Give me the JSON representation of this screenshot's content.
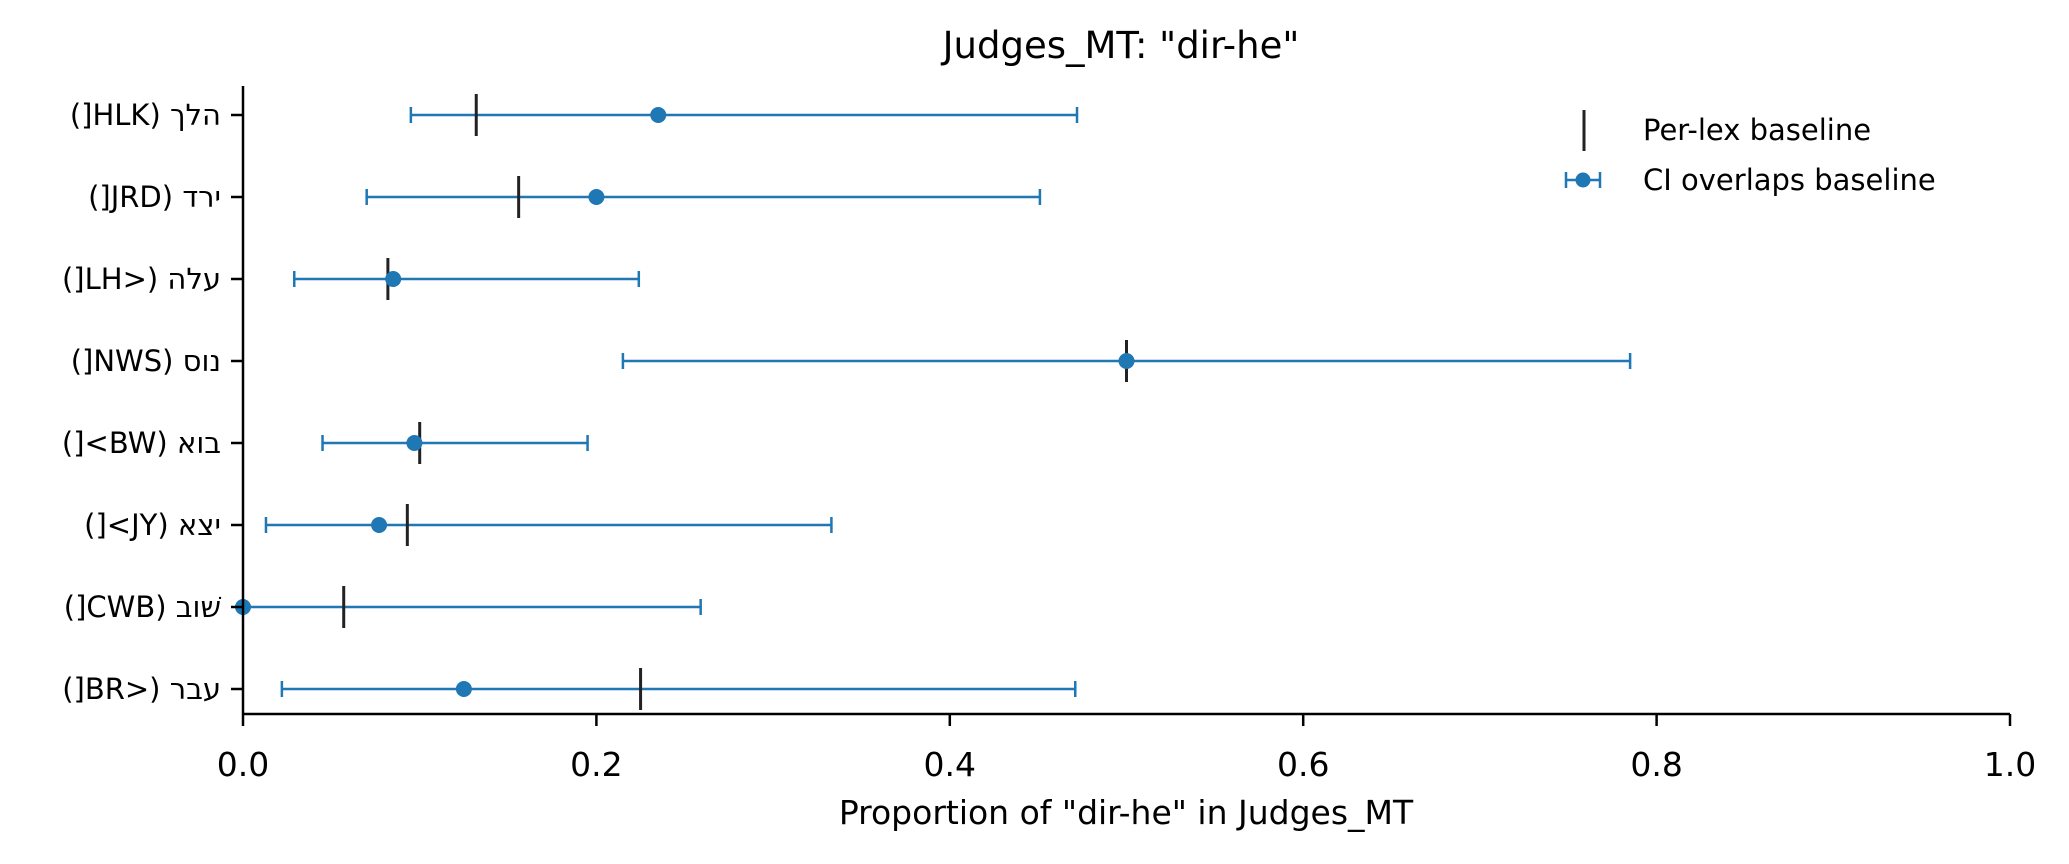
{
  "chart_data": {
    "type": "errorbar",
    "title": "Judges_MT: \"dir-he\"",
    "xlabel": "Proportion of \"dir-he\" in Judges_MT",
    "ylabel": "",
    "xlim": [
      0.0,
      1.0
    ],
    "xticks": [
      "0.0",
      "0.2",
      "0.4",
      "0.6",
      "0.8",
      "1.0"
    ],
    "grid": false,
    "legend_position": "top-right",
    "legend": {
      "baseline": "Per-lex baseline",
      "ci": "CI overlaps baseline"
    },
    "colors": {
      "ci": "#1f77b4",
      "baseline": "#222222"
    },
    "categories": [
      "הלך (HLK[)",
      "ירד (JRD[)",
      "עלה (<LH[)",
      "נוס (NWS[)",
      "בוא (BW>[)",
      "יצא (JY>[)",
      "שׁוב (CWB[)",
      "עבר (<BR[)"
    ],
    "series": [
      {
        "name": "CI overlaps baseline",
        "points": [
          {
            "value": 0.235,
            "ci_low": 0.095,
            "ci_high": 0.472
          },
          {
            "value": 0.2,
            "ci_low": 0.07,
            "ci_high": 0.451
          },
          {
            "value": 0.085,
            "ci_low": 0.029,
            "ci_high": 0.224
          },
          {
            "value": 0.5,
            "ci_low": 0.215,
            "ci_high": 0.785
          },
          {
            "value": 0.097,
            "ci_low": 0.045,
            "ci_high": 0.195
          },
          {
            "value": 0.077,
            "ci_low": 0.013,
            "ci_high": 0.333
          },
          {
            "value": 0.0,
            "ci_low": 0.0,
            "ci_high": 0.259
          },
          {
            "value": 0.125,
            "ci_low": 0.022,
            "ci_high": 0.471
          }
        ]
      },
      {
        "name": "Per-lex baseline",
        "values": [
          0.132,
          0.156,
          0.082,
          0.5,
          0.1,
          0.093,
          0.057,
          0.225
        ]
      }
    ]
  }
}
